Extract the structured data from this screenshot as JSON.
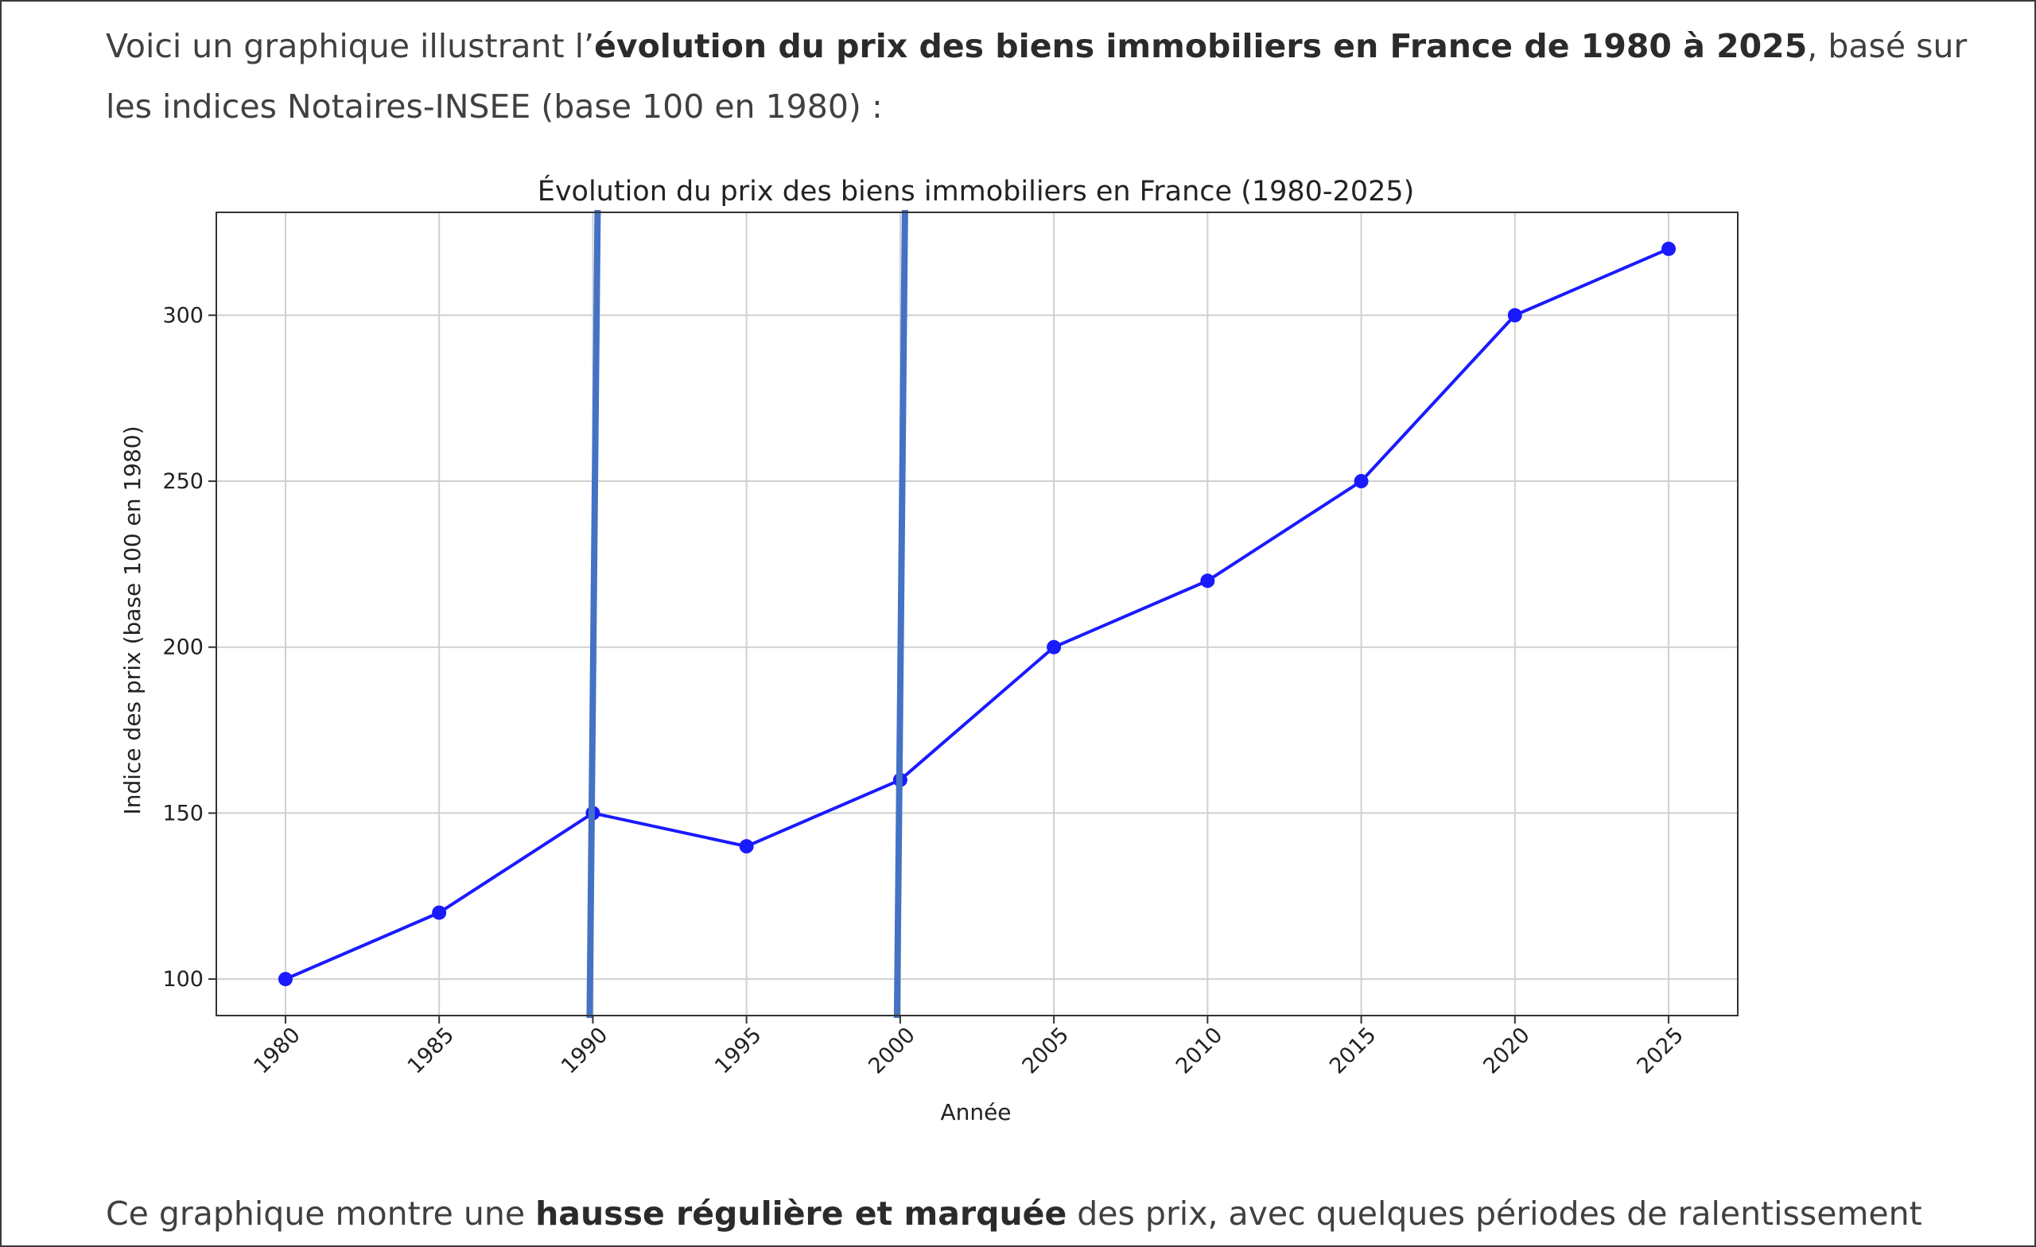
{
  "intro": {
    "line1_before": "Voici un graphique illustrant l’",
    "line1_bold": "évolution du prix des biens immobiliers en France de 1980 à 2025",
    "line1_after": ", basé sur",
    "line2": "les indices Notaires-INSEE (base 100 en 1980) :"
  },
  "outro": {
    "before": "Ce graphique montre une ",
    "bold": "hausse régulière et marquée",
    "after": " des prix, avec quelques périodes de ralentissement"
  },
  "colors": {
    "series": "#1a1aff",
    "annotation_lines": "#4472c4",
    "grid": "#d0d0d0",
    "axes": "#333333"
  },
  "chart_data": {
    "type": "line",
    "title": "Évolution du prix des biens immobiliers en France (1980-2025)",
    "xlabel": "Année",
    "ylabel": "Indice des prix (base 100 en 1980)",
    "x": [
      1980,
      1985,
      1990,
      1995,
      2000,
      2005,
      2010,
      2015,
      2020,
      2025
    ],
    "series": [
      {
        "values": [
          100,
          120,
          150,
          140,
          160,
          200,
          220,
          250,
          300,
          320
        ]
      }
    ],
    "yticks": [
      100,
      150,
      200,
      250,
      300
    ],
    "ylim": [
      89,
      331
    ],
    "xlim": [
      1977.75,
      2027.25
    ],
    "grid": true,
    "x_tick_rotation": -45,
    "marker": "circle",
    "annotation_vertical_lines": [
      1990,
      2000
    ]
  }
}
